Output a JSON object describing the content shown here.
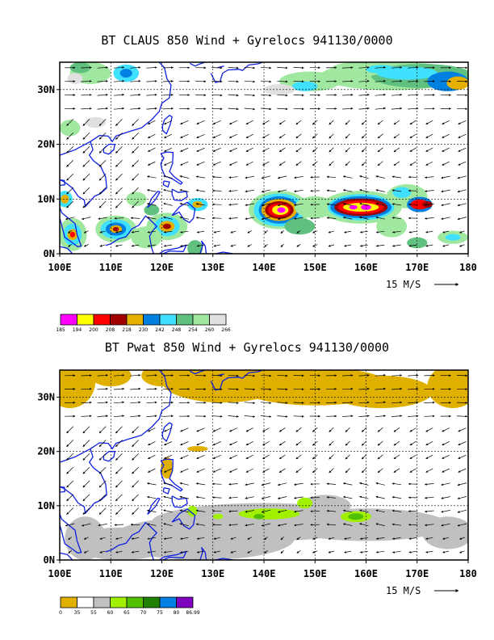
{
  "panels": [
    {
      "title": "BT CLAUS 850 Wind + Gyrelocs 941130/0000",
      "colorbar": {
        "colors": [
          "#ff00ff",
          "#ffff00",
          "#ff0000",
          "#a00000",
          "#e6b000",
          "#0080e0",
          "#40e0ff",
          "#60c080",
          "#a0e8a0",
          "#e0e0e0"
        ],
        "labels": [
          "185",
          "194",
          "200",
          "208",
          "218",
          "230",
          "242",
          "248",
          "254",
          "260",
          "266"
        ]
      }
    },
    {
      "title": "BT Pwat 850 Wind + Gyrelocs 941130/0000",
      "colorbar": {
        "colors": [
          "#e0b000",
          "#ffffff",
          "#c0c0c0",
          "#a0f000",
          "#50c000",
          "#208000",
          "#0080e0",
          "#8000c0"
        ],
        "labels": [
          "0",
          "35",
          "55",
          "60",
          "65",
          "70",
          "75",
          "80",
          "86.99"
        ]
      }
    }
  ],
  "axes": {
    "x_ticks": [
      "100E",
      "110E",
      "120E",
      "130E",
      "140E",
      "150E",
      "160E",
      "170E",
      "180"
    ],
    "y_ticks": [
      "0N",
      "10N",
      "20N",
      "30N"
    ]
  },
  "reference_vector": "15 M/S",
  "chart_data": [
    {
      "type": "heatmap",
      "title": "BT CLAUS 850 Wind + Gyrelocs 941130/0000",
      "field": "CLAUS brightness temperature with 850 hPa wind vectors",
      "x_range": [
        100,
        180
      ],
      "y_range": [
        0,
        35
      ],
      "x_ticks": [
        "100E",
        "110E",
        "120E",
        "130E",
        "140E",
        "150E",
        "160E",
        "170E",
        "180"
      ],
      "y_ticks": [
        "0N",
        "10N",
        "20N",
        "30N"
      ],
      "levels": [
        185,
        194,
        200,
        208,
        218,
        230,
        242,
        248,
        254,
        260,
        266
      ],
      "cold_cloud_clusters": [
        {
          "lon": 143,
          "lat": 8,
          "min_level": 185
        },
        {
          "lon": 159,
          "lat": 8.5,
          "min_level": 185
        },
        {
          "lon": 111,
          "lat": 4.5,
          "min_level": 208
        },
        {
          "lon": 121,
          "lat": 5,
          "min_level": 208
        },
        {
          "lon": 102,
          "lat": 3.5,
          "min_level": 208
        },
        {
          "lon": 170.5,
          "lat": 9,
          "min_level": 208
        },
        {
          "lon": 167,
          "lat": 11,
          "min_level": 230
        },
        {
          "lon": 175,
          "lat": 31,
          "min_level": 218
        }
      ],
      "grid": true
    },
    {
      "type": "heatmap",
      "title": "BT Pwat 850 Wind + Gyrelocs 941130/0000",
      "field": "Precipitable water with 850 hPa wind vectors",
      "x_range": [
        100,
        180
      ],
      "y_range": [
        0,
        35
      ],
      "x_ticks": [
        "100E",
        "110E",
        "120E",
        "130E",
        "140E",
        "150E",
        "160E",
        "170E",
        "180"
      ],
      "y_ticks": [
        "0N",
        "10N",
        "20N",
        "30N"
      ],
      "levels": [
        0,
        35,
        55,
        60,
        65,
        70,
        75,
        80,
        86.99
      ],
      "grid": true
    }
  ]
}
